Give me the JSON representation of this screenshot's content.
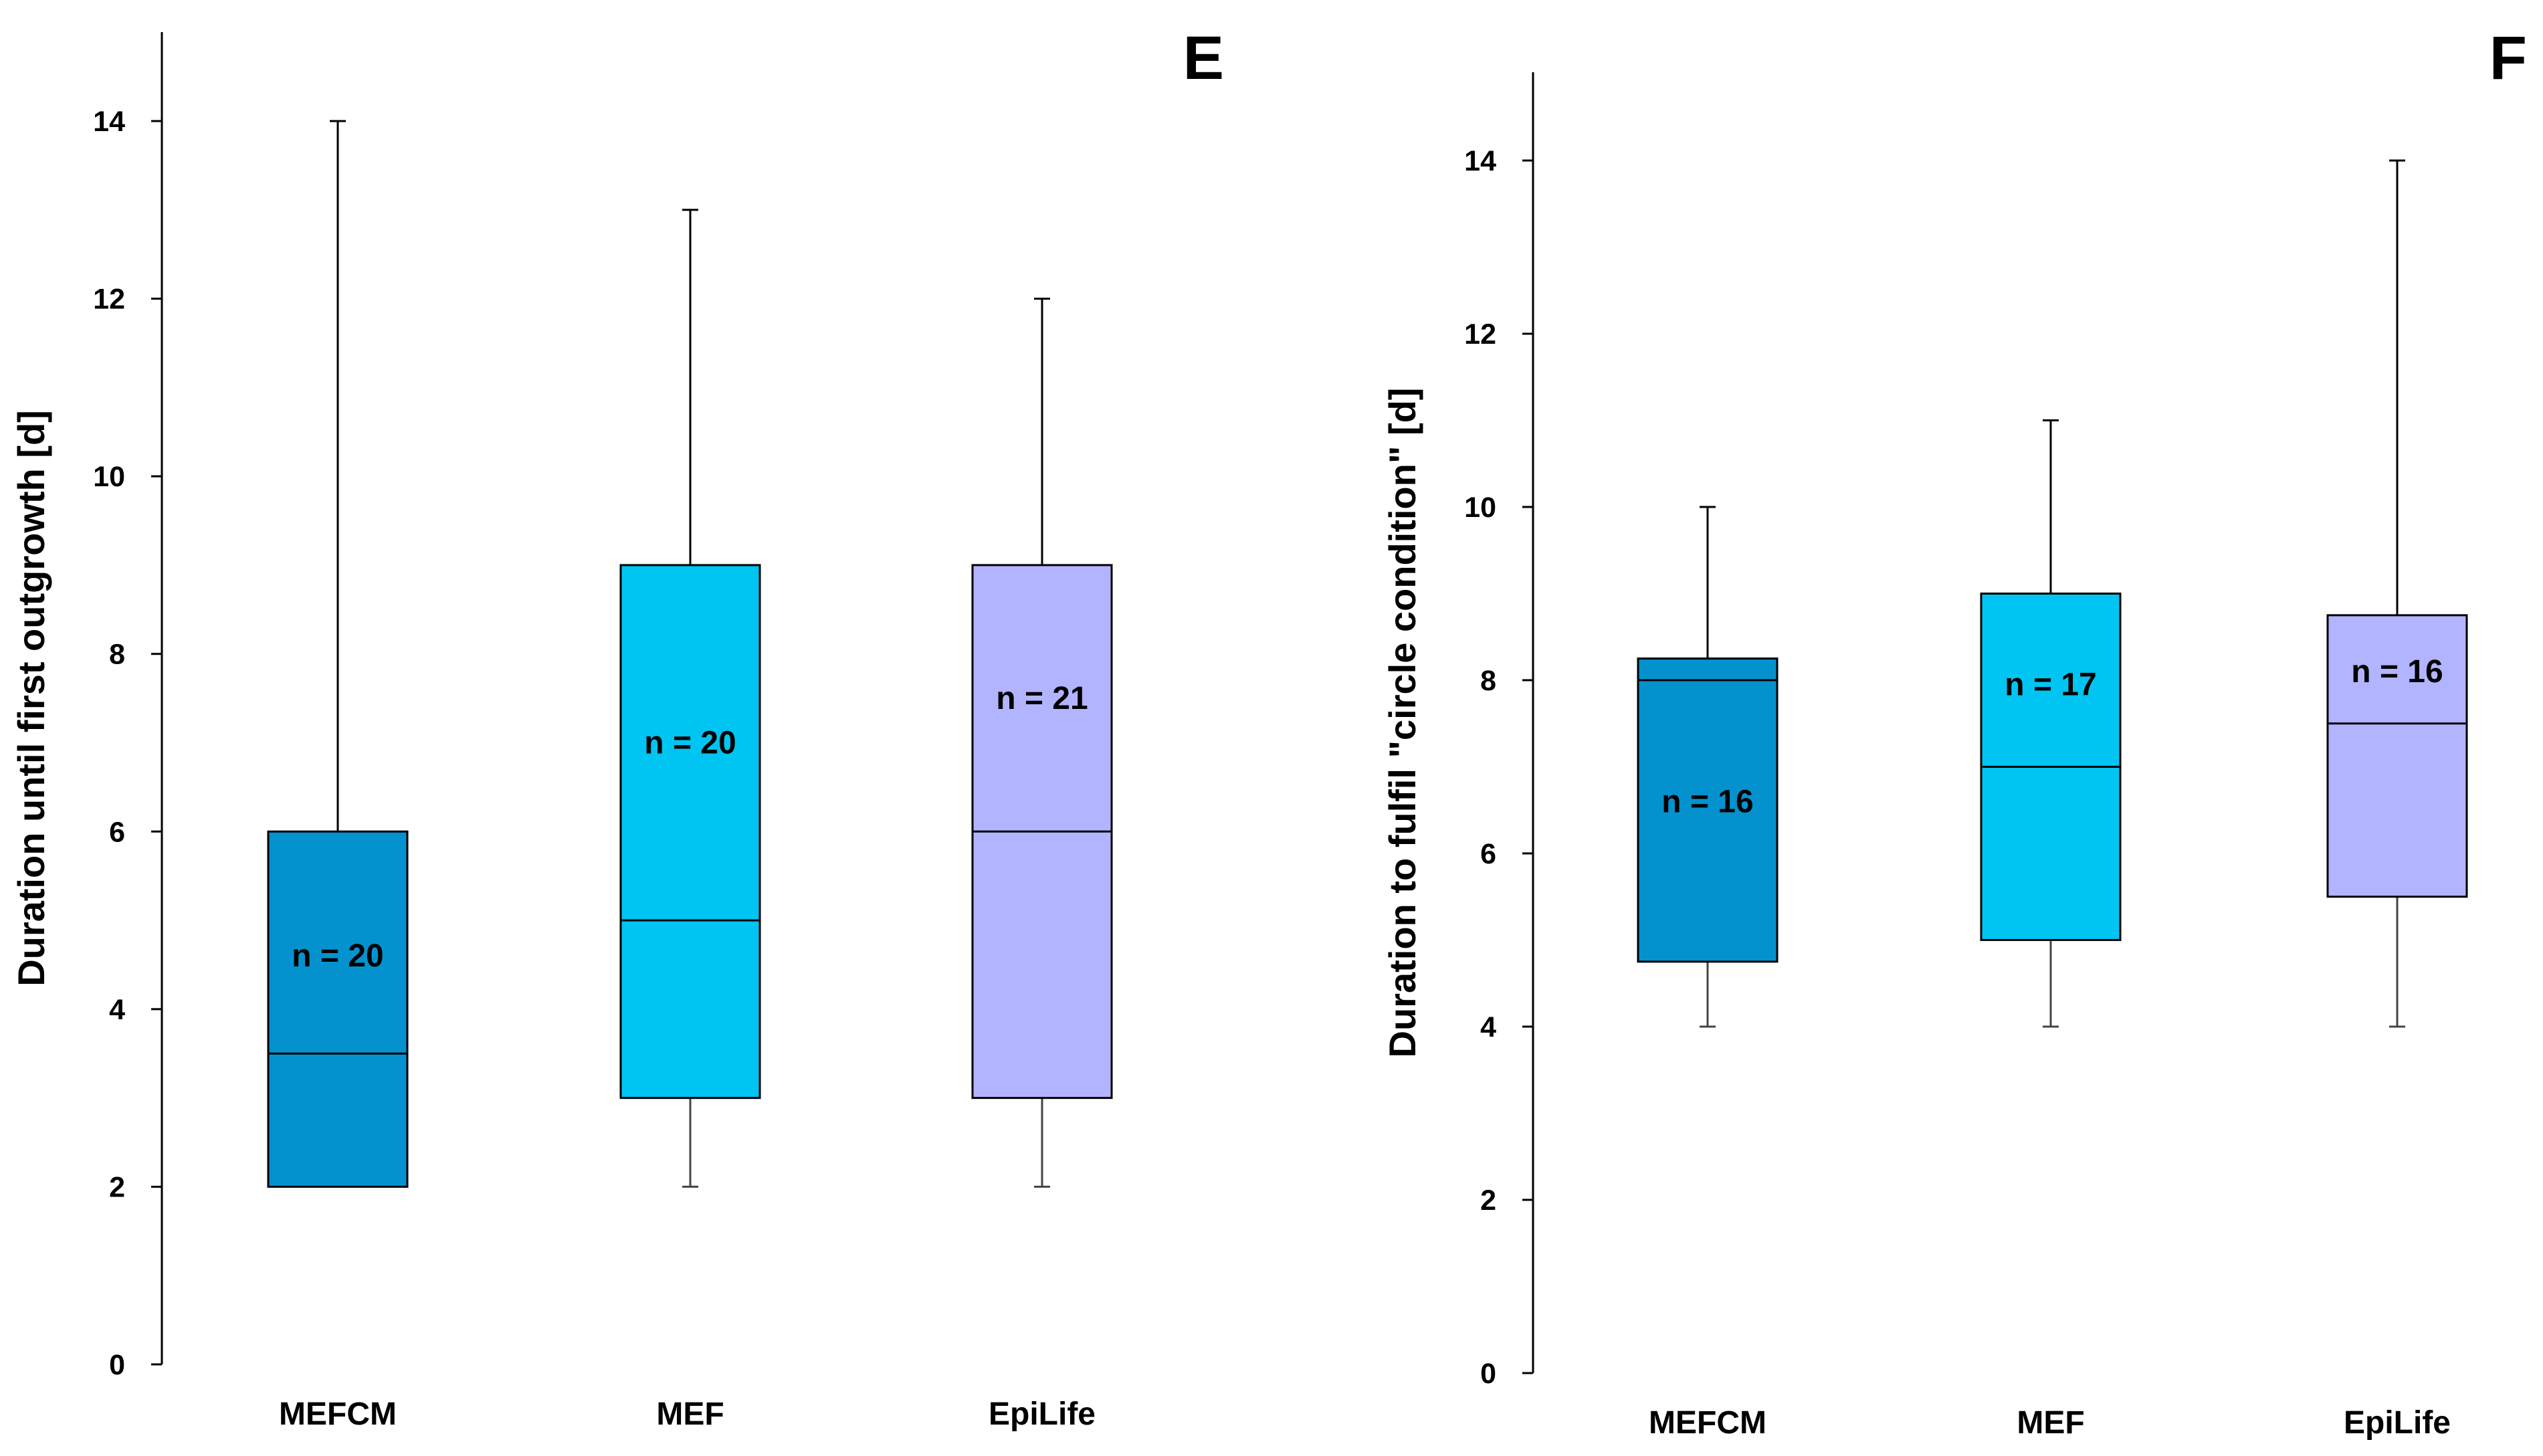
{
  "chart_data": [
    {
      "type": "box",
      "panel_label": "E",
      "ylabel": "Duration until first outgrowth [d]",
      "xlabel": "",
      "ylim": [
        0,
        14
      ],
      "yticks": [
        0,
        2,
        4,
        6,
        8,
        10,
        12,
        14
      ],
      "grid": false,
      "categories": [
        "MEFCM",
        "MEF",
        "EpiLife"
      ],
      "boxes": [
        {
          "category": "MEFCM",
          "min": 2,
          "q1": 2,
          "median": 3.5,
          "q3": 6,
          "max": 14,
          "n_label": "n = 20",
          "n_label_y": 4.6,
          "color": "#0492CF"
        },
        {
          "category": "MEF",
          "min": 2,
          "q1": 3,
          "median": 5,
          "q3": 9,
          "max": 13,
          "n_label": "n = 20",
          "n_label_y": 7.0,
          "color": "#00C4F2"
        },
        {
          "category": "EpiLife",
          "min": 2,
          "q1": 3,
          "median": 6,
          "q3": 9,
          "max": 12,
          "n_label": "n = 21",
          "n_label_y": 7.5,
          "color": "#B3B4FF"
        }
      ]
    },
    {
      "type": "box",
      "panel_label": "F",
      "ylabel": "Duration to fulfil \"circle condition\" [d]",
      "xlabel": "",
      "ylim": [
        0,
        14
      ],
      "yticks": [
        0,
        2,
        4,
        6,
        8,
        10,
        12,
        14
      ],
      "grid": false,
      "categories": [
        "MEFCM",
        "MEF",
        "EpiLife"
      ],
      "boxes": [
        {
          "category": "MEFCM",
          "min": 4,
          "q1": 4.75,
          "median": 8,
          "q3": 8.25,
          "max": 10,
          "n_label": "n = 16",
          "n_label_y": 6.6,
          "color": "#0492CF"
        },
        {
          "category": "MEF",
          "min": 4,
          "q1": 5,
          "median": 7,
          "q3": 9,
          "max": 11,
          "n_label": "n = 17",
          "n_label_y": 7.95,
          "color": "#00C4F2"
        },
        {
          "category": "EpiLife",
          "min": 4,
          "q1": 5.5,
          "median": 7.5,
          "q3": 8.75,
          "max": 14,
          "n_label": "n = 16",
          "n_label_y": 8.1,
          "color": "#B3B4FF"
        }
      ]
    }
  ]
}
